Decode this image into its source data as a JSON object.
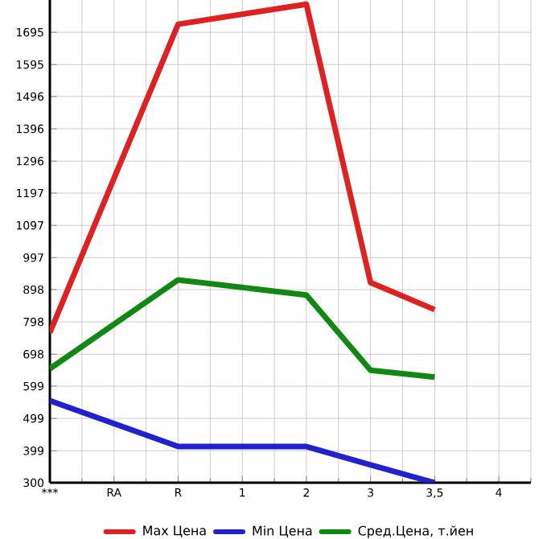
{
  "chart_data": {
    "type": "line",
    "categories": [
      "***",
      "RA",
      "R",
      "1",
      "2",
      "3",
      "3,5",
      "4"
    ],
    "series": [
      {
        "name": "Max Цена",
        "color": "#dd2222",
        "values": [
          765,
          null,
          1720,
          null,
          1782,
          920,
          836,
          null
        ]
      },
      {
        "name": "Min Цена",
        "color": "#2222cc",
        "values": [
          554,
          null,
          412,
          null,
          412,
          355,
          300,
          null
        ]
      },
      {
        "name": "Сред.Цена, т.йен",
        "color": "#118811",
        "values": [
          653,
          null,
          928,
          null,
          881,
          648,
          627,
          null
        ]
      }
    ],
    "ylim": [
      300,
      1795
    ],
    "yticks": [
      300,
      399,
      499,
      599,
      698,
      798,
      898,
      997,
      1097,
      1197,
      1296,
      1396,
      1496,
      1595,
      1695
    ],
    "grid": true,
    "legend": "bottom",
    "marker": "none",
    "line_style": "solid"
  }
}
